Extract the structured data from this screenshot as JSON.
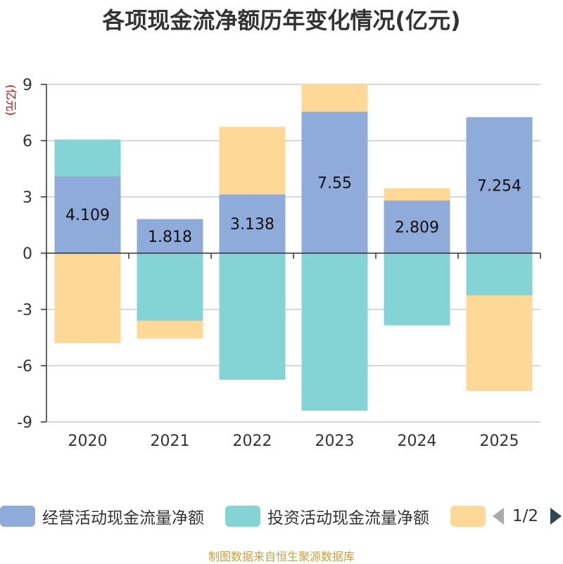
{
  "chart_data": {
    "type": "bar",
    "stacked": true,
    "title": "各项现金流净额历年变化情况(亿元)",
    "ylabel": "(亿元)",
    "xlabel": "",
    "categories": [
      "2020",
      "2021",
      "2022",
      "2023",
      "2024",
      "2025"
    ],
    "ylim": [
      -9,
      9
    ],
    "yticks": [
      9,
      6,
      3,
      0,
      -3,
      -6,
      -9
    ],
    "grid": true,
    "legend_position": "bottom",
    "series": [
      {
        "name": "经营活动现金流量净额",
        "color": "#8eabd9",
        "values": [
          4.109,
          1.818,
          3.138,
          7.55,
          2.809,
          7.254
        ],
        "labels": [
          "4.109",
          "1.818",
          "3.138",
          "7.55",
          "2.809",
          "7.254"
        ]
      },
      {
        "name": "投资活动现金流量净额",
        "color": "#84d4d6",
        "values": [
          1.95,
          -3.6,
          -6.75,
          -8.4,
          -3.85,
          -2.25
        ]
      },
      {
        "name": "",
        "color": "#fed896",
        "values": [
          -4.8,
          -0.95,
          3.6,
          1.45,
          0.65,
          -5.1
        ]
      }
    ]
  },
  "legend": {
    "page_indicator": "1/2"
  },
  "source_note": "制图数据来自恒生聚源数据库"
}
